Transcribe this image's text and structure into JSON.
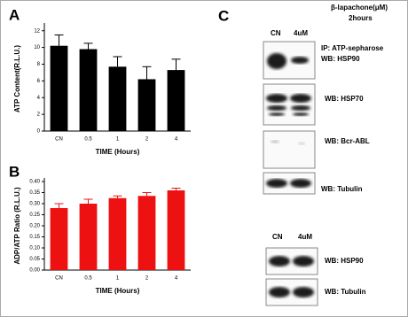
{
  "chart_data": [
    {
      "type": "bar",
      "panel": "A",
      "x_label": "TIME (Hours)",
      "y_label": "ATP Content(R.L.U.)",
      "categories": [
        "CN",
        "0.5",
        "1",
        "2",
        "4"
      ],
      "values": [
        10.2,
        9.8,
        7.7,
        6.2,
        7.3
      ],
      "errors": [
        1.3,
        0.7,
        1.2,
        1.5,
        1.3
      ],
      "color": "#000000",
      "ylim": [
        0,
        12.5
      ],
      "yticks": [
        0,
        2,
        4,
        6,
        8,
        10,
        12
      ]
    },
    {
      "type": "bar",
      "panel": "B",
      "x_label": "TIME (Hours)",
      "y_label": "ADP/ATP Ratio (R.L.U.)",
      "categories": [
        "CN",
        "0.5",
        "1",
        "2",
        "4"
      ],
      "values": [
        0.28,
        0.3,
        0.325,
        0.335,
        0.36
      ],
      "errors": [
        0.02,
        0.02,
        0.01,
        0.015,
        0.01
      ],
      "color": "#ee1111",
      "ylim": [
        0,
        0.4
      ],
      "yticks": [
        {
          "value": 0,
          "label": "0.00"
        },
        {
          "value": 0.05,
          "label": "0.05"
        },
        {
          "value": 0.1,
          "label": "0.10"
        },
        {
          "value": 0.15,
          "label": "0.15"
        },
        {
          "value": 0.2,
          "label": "0.20"
        },
        {
          "value": 0.25,
          "label": "0.25"
        },
        {
          "value": 0.3,
          "label": "0.30"
        },
        {
          "value": 0.35,
          "label": "0.35"
        },
        {
          "value": 0.4,
          "label": "0.40"
        }
      ]
    }
  ],
  "blots": {
    "panel": "C",
    "treatment": "β-lapachone(μM)",
    "duration": "2hours",
    "top_lanes": [
      "CN",
      "4uM"
    ],
    "ip": "IP: ATP-sepharose",
    "top_labels": [
      "WB: HSP90",
      "WB: HSP70",
      "WB: Bcr-ABL",
      "WB: Tubulin"
    ],
    "bottom_lanes": [
      "CN",
      "4uM"
    ],
    "bottom_labels": [
      "WB: HSP90",
      "WB: Tubulin"
    ]
  }
}
